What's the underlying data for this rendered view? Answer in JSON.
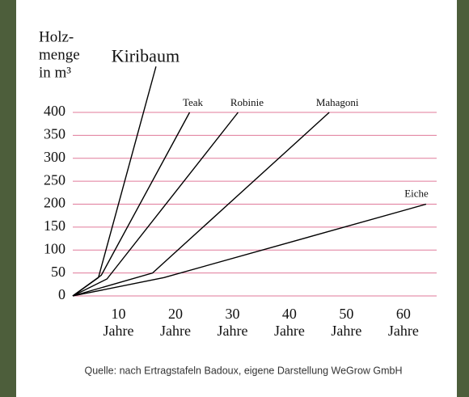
{
  "chart_data": {
    "type": "line",
    "y_label": [
      "Holz-",
      "menge",
      "in m³"
    ],
    "x_unit": "Jahre",
    "xlim": [
      0,
      62
    ],
    "xticks": [
      10,
      20,
      30,
      40,
      50,
      60
    ],
    "ylim": [
      0,
      500
    ],
    "yticks": [
      0,
      50,
      100,
      150,
      200,
      250,
      300,
      350,
      400
    ],
    "grid": true,
    "grid_color": "#e07a9a",
    "series": [
      {
        "name": "Kiribaum",
        "color": "#000000",
        "x": [
          0,
          4.5,
          14.6
        ],
        "values": [
          0,
          40,
          500
        ]
      },
      {
        "name": "Teak",
        "color": "#000000",
        "x": [
          0,
          5,
          20.5
        ],
        "values": [
          0,
          45,
          400
        ]
      },
      {
        "name": "Robinie",
        "color": "#000000",
        "x": [
          0,
          6,
          29
        ],
        "values": [
          0,
          37,
          400
        ]
      },
      {
        "name": "Mahagoni",
        "color": "#000000",
        "x": [
          0,
          14,
          45
        ],
        "values": [
          0,
          50,
          400
        ]
      },
      {
        "name": "Eiche",
        "color": "#000000",
        "x": [
          0,
          16,
          62
        ],
        "values": [
          0,
          40,
          200
        ]
      }
    ],
    "source": "Quelle: nach Ertragstafeln Badoux, eigene Darstellung WeGrow GmbH"
  }
}
